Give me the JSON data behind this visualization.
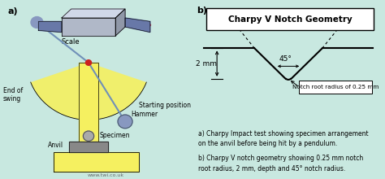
{
  "bg_color": "#c8e8e0",
  "panel_bg": "#c8e8e0",
  "title_right": "Charpy V Notch Geometry",
  "label_a": "a)",
  "label_b": "b)",
  "note_2mm": "2 mm",
  "note_45": "45°",
  "note_radius": "Notch root radius of 0.25 mm",
  "caption_a": "a) Charpy Impact test showing specimen arrangement\non the anvil before being hit by a pendulum.",
  "caption_b": "b) Charpy V notch geometry showing 0.25 mm notch\nroot radius, 2 mm, depth and 45° notch radius.",
  "url": "www.twi.co.uk",
  "scale_label": "Scale",
  "start_label": "Starting position",
  "end_label": "End of\nswing",
  "hammer_label": "Hammer",
  "specimen_label": "Specimen",
  "anvil_label": "Anvil",
  "yellow": "#f5f060",
  "yellow_dark": "#e8d840",
  "blue_steel": "#7090b8",
  "blue_hammer": "#8898c0",
  "gray_specimen": "#909090",
  "red_pivot": "#cc2020",
  "red_arrow": "#cc0000"
}
